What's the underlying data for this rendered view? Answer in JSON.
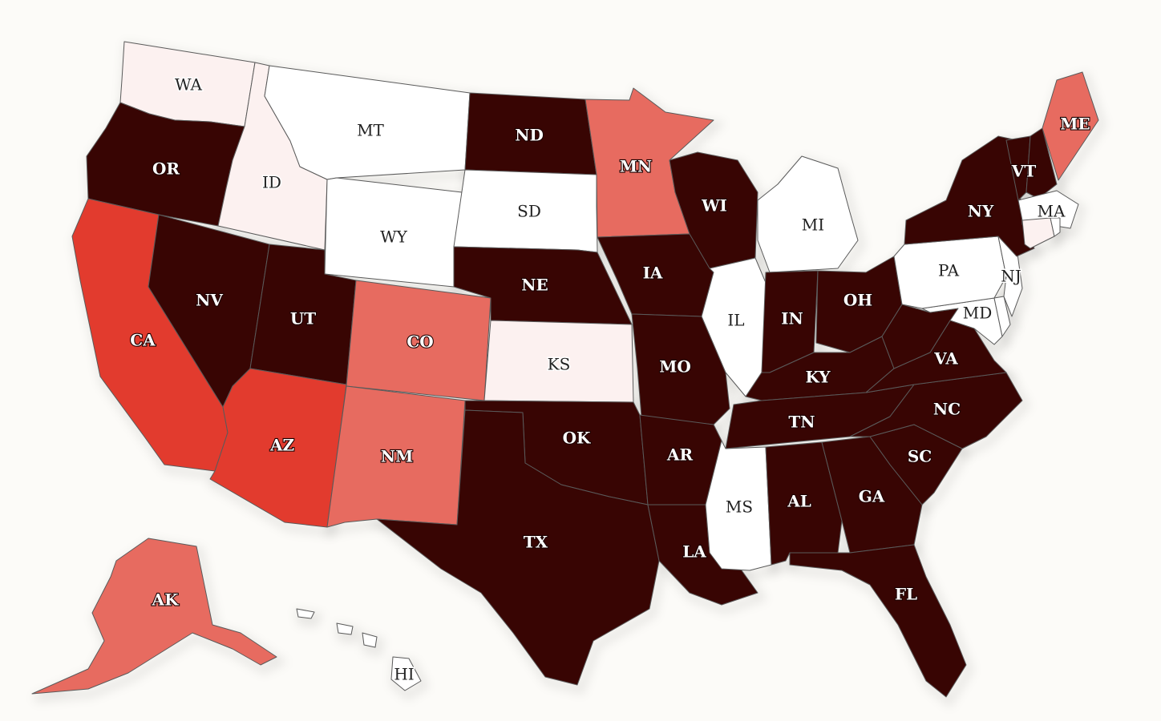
{
  "colors": {
    "background": "#fcfbf8",
    "tier_dark": "#380503",
    "tier_red": "#e23b2e",
    "tier_salmon": "#e76b60",
    "tier_pale": "#fcf1f0",
    "tier_white": "#ffffff",
    "border": "#5a5a5a"
  },
  "states": [
    {
      "code": "WA",
      "label": "WA",
      "tier": "tier_pale"
    },
    {
      "code": "OR",
      "label": "OR",
      "tier": "tier_dark"
    },
    {
      "code": "CA",
      "label": "CA",
      "tier": "tier_red"
    },
    {
      "code": "ID",
      "label": "ID",
      "tier": "tier_pale"
    },
    {
      "code": "NV",
      "label": "NV",
      "tier": "tier_dark"
    },
    {
      "code": "MT",
      "label": "MT",
      "tier": "tier_white"
    },
    {
      "code": "WY",
      "label": "WY",
      "tier": "tier_white"
    },
    {
      "code": "UT",
      "label": "UT",
      "tier": "tier_dark"
    },
    {
      "code": "AZ",
      "label": "AZ",
      "tier": "tier_red"
    },
    {
      "code": "CO",
      "label": "CO",
      "tier": "tier_salmon"
    },
    {
      "code": "NM",
      "label": "NM",
      "tier": "tier_salmon"
    },
    {
      "code": "ND",
      "label": "ND",
      "tier": "tier_dark"
    },
    {
      "code": "SD",
      "label": "SD",
      "tier": "tier_white"
    },
    {
      "code": "NE",
      "label": "NE",
      "tier": "tier_dark"
    },
    {
      "code": "KS",
      "label": "KS",
      "tier": "tier_pale"
    },
    {
      "code": "OK",
      "label": "OK",
      "tier": "tier_dark"
    },
    {
      "code": "TX",
      "label": "TX",
      "tier": "tier_dark"
    },
    {
      "code": "MN",
      "label": "MN",
      "tier": "tier_salmon"
    },
    {
      "code": "IA",
      "label": "IA",
      "tier": "tier_dark"
    },
    {
      "code": "MO",
      "label": "MO",
      "tier": "tier_dark"
    },
    {
      "code": "AR",
      "label": "AR",
      "tier": "tier_dark"
    },
    {
      "code": "LA",
      "label": "LA",
      "tier": "tier_dark"
    },
    {
      "code": "WI",
      "label": "WI",
      "tier": "tier_dark"
    },
    {
      "code": "IL",
      "label": "IL",
      "tier": "tier_white"
    },
    {
      "code": "MI",
      "label": "MI",
      "tier": "tier_white"
    },
    {
      "code": "IN",
      "label": "IN",
      "tier": "tier_dark"
    },
    {
      "code": "OH",
      "label": "OH",
      "tier": "tier_dark"
    },
    {
      "code": "KY",
      "label": "KY",
      "tier": "tier_dark"
    },
    {
      "code": "TN",
      "label": "TN",
      "tier": "tier_dark"
    },
    {
      "code": "MS",
      "label": "MS",
      "tier": "tier_white"
    },
    {
      "code": "AL",
      "label": "AL",
      "tier": "tier_dark"
    },
    {
      "code": "GA",
      "label": "GA",
      "tier": "tier_dark"
    },
    {
      "code": "FL",
      "label": "FL",
      "tier": "tier_dark"
    },
    {
      "code": "SC",
      "label": "SC",
      "tier": "tier_dark"
    },
    {
      "code": "NC",
      "label": "NC",
      "tier": "tier_dark"
    },
    {
      "code": "VA",
      "label": "VA",
      "tier": "tier_dark"
    },
    {
      "code": "WV",
      "label": "",
      "tier": "tier_dark"
    },
    {
      "code": "MD",
      "label": "MD",
      "tier": "tier_white"
    },
    {
      "code": "DE",
      "label": "",
      "tier": "tier_white"
    },
    {
      "code": "PA",
      "label": "PA",
      "tier": "tier_white"
    },
    {
      "code": "NJ",
      "label": "NJ",
      "tier": "tier_white"
    },
    {
      "code": "NY",
      "label": "NY",
      "tier": "tier_dark"
    },
    {
      "code": "VT",
      "label": "VT",
      "tier": "tier_dark"
    },
    {
      "code": "NH",
      "label": "",
      "tier": "tier_dark"
    },
    {
      "code": "ME",
      "label": "ME",
      "tier": "tier_salmon"
    },
    {
      "code": "MA",
      "label": "MA",
      "tier": "tier_white"
    },
    {
      "code": "CT",
      "label": "",
      "tier": "tier_pale"
    },
    {
      "code": "RI",
      "label": "",
      "tier": "tier_white"
    },
    {
      "code": "AK",
      "label": "AK",
      "tier": "tier_salmon"
    },
    {
      "code": "HI",
      "label": "HI",
      "tier": "tier_white"
    }
  ]
}
